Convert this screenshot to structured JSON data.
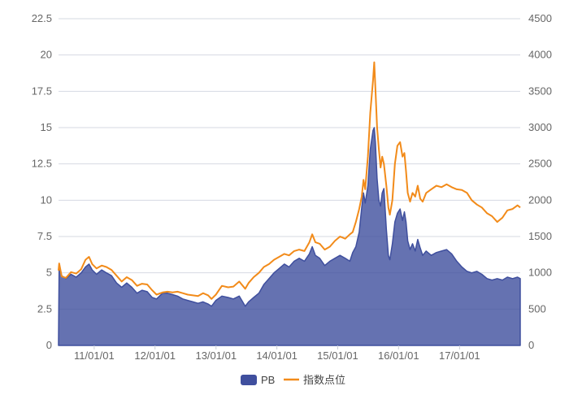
{
  "chart_data": {
    "type": "area",
    "x_ticks": [
      "11/01/01",
      "12/01/01",
      "13/01/01",
      "14/01/01",
      "15/01/01",
      "16/01/01",
      "17/01/01"
    ],
    "y_left_ticks": [
      "0",
      "2.5",
      "5",
      "7.5",
      "10",
      "12.5",
      "15",
      "17.5",
      "20",
      "22.5"
    ],
    "y_right_ticks": [
      "0",
      "500",
      "1000",
      "1500",
      "2000",
      "2500",
      "3000",
      "3500",
      "4000",
      "4500"
    ],
    "ylim_left": [
      0,
      22.5
    ],
    "ylim_right": [
      0,
      4500
    ],
    "x_range": [
      "2010-06-01",
      "2017-12-31"
    ],
    "grid": true,
    "legend_position": "bottom-center",
    "series": [
      {
        "name": "PB",
        "type": "area",
        "axis": "left",
        "color": "#3f4f9e",
        "points": [
          [
            "2010-06-01",
            0.2
          ],
          [
            "2010-06-05",
            5.6
          ],
          [
            "2010-06-20",
            4.8
          ],
          [
            "2010-07-15",
            4.6
          ],
          [
            "2010-08-15",
            4.9
          ],
          [
            "2010-09-15",
            4.7
          ],
          [
            "2010-10-15",
            5.0
          ],
          [
            "2010-11-10",
            5.4
          ],
          [
            "2010-12-01",
            5.6
          ],
          [
            "2010-12-20",
            5.2
          ],
          [
            "2011-01-15",
            4.9
          ],
          [
            "2011-02-15",
            5.2
          ],
          [
            "2011-03-15",
            5.0
          ],
          [
            "2011-04-15",
            4.8
          ],
          [
            "2011-05-15",
            4.3
          ],
          [
            "2011-06-15",
            4.0
          ],
          [
            "2011-07-15",
            4.3
          ],
          [
            "2011-08-15",
            4.0
          ],
          [
            "2011-09-15",
            3.6
          ],
          [
            "2011-10-15",
            3.8
          ],
          [
            "2011-11-15",
            3.7
          ],
          [
            "2011-12-15",
            3.3
          ],
          [
            "2012-01-10",
            3.2
          ],
          [
            "2012-02-15",
            3.6
          ],
          [
            "2012-03-15",
            3.6
          ],
          [
            "2012-04-15",
            3.5
          ],
          [
            "2012-05-15",
            3.4
          ],
          [
            "2012-06-15",
            3.2
          ],
          [
            "2012-07-15",
            3.1
          ],
          [
            "2012-08-15",
            3.0
          ],
          [
            "2012-09-15",
            2.9
          ],
          [
            "2012-10-15",
            3.0
          ],
          [
            "2012-11-15",
            2.85
          ],
          [
            "2012-12-05",
            2.7
          ],
          [
            "2012-12-31",
            3.1
          ],
          [
            "2013-02-05",
            3.4
          ],
          [
            "2013-03-15",
            3.3
          ],
          [
            "2013-04-15",
            3.2
          ],
          [
            "2013-05-20",
            3.4
          ],
          [
            "2013-06-25",
            2.7
          ],
          [
            "2013-07-15",
            3.0
          ],
          [
            "2013-08-15",
            3.3
          ],
          [
            "2013-09-15",
            3.6
          ],
          [
            "2013-10-15",
            4.2
          ],
          [
            "2013-11-15",
            4.6
          ],
          [
            "2013-12-15",
            5.0
          ],
          [
            "2014-01-15",
            5.3
          ],
          [
            "2014-02-15",
            5.6
          ],
          [
            "2014-03-15",
            5.4
          ],
          [
            "2014-04-15",
            5.8
          ],
          [
            "2014-05-15",
            6.0
          ],
          [
            "2014-06-15",
            5.8
          ],
          [
            "2014-07-15",
            6.3
          ],
          [
            "2014-08-01",
            6.8
          ],
          [
            "2014-08-20",
            6.2
          ],
          [
            "2014-09-15",
            6.0
          ],
          [
            "2014-10-15",
            5.5
          ],
          [
            "2014-11-15",
            5.8
          ],
          [
            "2014-12-15",
            6.0
          ],
          [
            "2015-01-15",
            6.2
          ],
          [
            "2015-02-15",
            6.0
          ],
          [
            "2015-03-15",
            5.8
          ],
          [
            "2015-04-01",
            6.4
          ],
          [
            "2015-04-20",
            6.8
          ],
          [
            "2015-05-10",
            7.8
          ],
          [
            "2015-05-25",
            9.5
          ],
          [
            "2015-06-05",
            10.5
          ],
          [
            "2015-06-15",
            9.8
          ],
          [
            "2015-07-01",
            11.0
          ],
          [
            "2015-07-15",
            13.5
          ],
          [
            "2015-08-01",
            14.8
          ],
          [
            "2015-08-08",
            15.0
          ],
          [
            "2015-08-15",
            14.0
          ],
          [
            "2015-08-25",
            11.5
          ],
          [
            "2015-09-05",
            10.0
          ],
          [
            "2015-09-15",
            9.6
          ],
          [
            "2015-09-25",
            10.5
          ],
          [
            "2015-10-05",
            10.8
          ],
          [
            "2015-10-20",
            8.0
          ],
          [
            "2015-11-01",
            6.2
          ],
          [
            "2015-11-10",
            5.9
          ],
          [
            "2015-11-25",
            7.0
          ],
          [
            "2015-12-10",
            8.5
          ],
          [
            "2015-12-25",
            9.1
          ],
          [
            "2016-01-10",
            9.4
          ],
          [
            "2016-01-25",
            8.6
          ],
          [
            "2016-02-05",
            9.2
          ],
          [
            "2016-02-15",
            8.5
          ],
          [
            "2016-02-25",
            7.2
          ],
          [
            "2016-03-10",
            6.6
          ],
          [
            "2016-03-25",
            7.0
          ],
          [
            "2016-04-10",
            6.5
          ],
          [
            "2016-04-25",
            7.3
          ],
          [
            "2016-05-10",
            6.7
          ],
          [
            "2016-05-25",
            6.2
          ],
          [
            "2016-06-15",
            6.5
          ],
          [
            "2016-07-15",
            6.2
          ],
          [
            "2016-08-15",
            6.4
          ],
          [
            "2016-09-15",
            6.5
          ],
          [
            "2016-10-15",
            6.6
          ],
          [
            "2016-11-15",
            6.3
          ],
          [
            "2016-12-15",
            5.8
          ],
          [
            "2017-01-15",
            5.4
          ],
          [
            "2017-02-15",
            5.1
          ],
          [
            "2017-03-15",
            5.0
          ],
          [
            "2017-04-15",
            5.1
          ],
          [
            "2017-05-15",
            4.9
          ],
          [
            "2017-06-15",
            4.6
          ],
          [
            "2017-07-15",
            4.5
          ],
          [
            "2017-08-15",
            4.6
          ],
          [
            "2017-09-15",
            4.5
          ],
          [
            "2017-10-15",
            4.7
          ],
          [
            "2017-11-15",
            4.6
          ],
          [
            "2017-12-15",
            4.7
          ],
          [
            "2017-12-31",
            4.6
          ]
        ]
      },
      {
        "name": "指数点位",
        "type": "line",
        "axis": "right",
        "color": "#f28b1a",
        "points": [
          [
            "2010-06-01",
            1030
          ],
          [
            "2010-06-05",
            1130
          ],
          [
            "2010-06-20",
            950
          ],
          [
            "2010-07-15",
            930
          ],
          [
            "2010-08-15",
            1010
          ],
          [
            "2010-09-15",
            990
          ],
          [
            "2010-10-15",
            1050
          ],
          [
            "2010-11-10",
            1180
          ],
          [
            "2010-12-01",
            1220
          ],
          [
            "2010-12-20",
            1120
          ],
          [
            "2011-01-15",
            1060
          ],
          [
            "2011-02-15",
            1100
          ],
          [
            "2011-03-15",
            1080
          ],
          [
            "2011-04-15",
            1040
          ],
          [
            "2011-05-15",
            960
          ],
          [
            "2011-06-15",
            880
          ],
          [
            "2011-07-15",
            940
          ],
          [
            "2011-08-15",
            900
          ],
          [
            "2011-09-15",
            820
          ],
          [
            "2011-10-15",
            850
          ],
          [
            "2011-11-15",
            840
          ],
          [
            "2011-12-15",
            760
          ],
          [
            "2012-01-10",
            700
          ],
          [
            "2012-02-15",
            730
          ],
          [
            "2012-03-15",
            740
          ],
          [
            "2012-04-15",
            730
          ],
          [
            "2012-05-15",
            740
          ],
          [
            "2012-06-15",
            720
          ],
          [
            "2012-07-15",
            700
          ],
          [
            "2012-08-15",
            690
          ],
          [
            "2012-09-15",
            680
          ],
          [
            "2012-10-15",
            720
          ],
          [
            "2012-11-15",
            690
          ],
          [
            "2012-12-05",
            640
          ],
          [
            "2012-12-31",
            700
          ],
          [
            "2013-02-05",
            820
          ],
          [
            "2013-03-15",
            800
          ],
          [
            "2013-04-15",
            810
          ],
          [
            "2013-05-20",
            880
          ],
          [
            "2013-06-25",
            780
          ],
          [
            "2013-07-15",
            860
          ],
          [
            "2013-08-15",
            940
          ],
          [
            "2013-09-15",
            1000
          ],
          [
            "2013-10-15",
            1080
          ],
          [
            "2013-11-15",
            1120
          ],
          [
            "2013-12-15",
            1180
          ],
          [
            "2014-01-15",
            1220
          ],
          [
            "2014-02-15",
            1260
          ],
          [
            "2014-03-15",
            1240
          ],
          [
            "2014-04-15",
            1300
          ],
          [
            "2014-05-15",
            1320
          ],
          [
            "2014-06-15",
            1300
          ],
          [
            "2014-07-15",
            1420
          ],
          [
            "2014-08-01",
            1530
          ],
          [
            "2014-08-20",
            1420
          ],
          [
            "2014-09-15",
            1400
          ],
          [
            "2014-10-15",
            1320
          ],
          [
            "2014-11-15",
            1360
          ],
          [
            "2014-12-15",
            1440
          ],
          [
            "2015-01-15",
            1500
          ],
          [
            "2015-02-15",
            1470
          ],
          [
            "2015-03-15",
            1530
          ],
          [
            "2015-04-01",
            1560
          ],
          [
            "2015-04-20",
            1700
          ],
          [
            "2015-05-10",
            1880
          ],
          [
            "2015-05-25",
            2050
          ],
          [
            "2015-06-05",
            2280
          ],
          [
            "2015-06-15",
            2150
          ],
          [
            "2015-07-01",
            2600
          ],
          [
            "2015-07-15",
            3200
          ],
          [
            "2015-08-01",
            3650
          ],
          [
            "2015-08-08",
            3900
          ],
          [
            "2015-08-15",
            3550
          ],
          [
            "2015-08-25",
            3000
          ],
          [
            "2015-09-05",
            2700
          ],
          [
            "2015-09-15",
            2450
          ],
          [
            "2015-09-25",
            2600
          ],
          [
            "2015-10-05",
            2500
          ],
          [
            "2015-10-20",
            2200
          ],
          [
            "2015-11-01",
            1900
          ],
          [
            "2015-11-10",
            1800
          ],
          [
            "2015-11-25",
            2000
          ],
          [
            "2015-12-10",
            2500
          ],
          [
            "2015-12-25",
            2750
          ],
          [
            "2016-01-10",
            2800
          ],
          [
            "2016-01-25",
            2600
          ],
          [
            "2016-02-05",
            2650
          ],
          [
            "2016-02-15",
            2400
          ],
          [
            "2016-02-25",
            2100
          ],
          [
            "2016-03-10",
            1980
          ],
          [
            "2016-03-25",
            2100
          ],
          [
            "2016-04-10",
            2050
          ],
          [
            "2016-04-25",
            2200
          ],
          [
            "2016-05-10",
            2020
          ],
          [
            "2016-05-25",
            1980
          ],
          [
            "2016-06-15",
            2100
          ],
          [
            "2016-07-15",
            2150
          ],
          [
            "2016-08-15",
            2200
          ],
          [
            "2016-09-15",
            2180
          ],
          [
            "2016-10-15",
            2220
          ],
          [
            "2016-11-15",
            2180
          ],
          [
            "2016-12-15",
            2150
          ],
          [
            "2017-01-15",
            2140
          ],
          [
            "2017-02-15",
            2100
          ],
          [
            "2017-03-15",
            2000
          ],
          [
            "2017-04-15",
            1940
          ],
          [
            "2017-05-15",
            1900
          ],
          [
            "2017-06-15",
            1820
          ],
          [
            "2017-07-15",
            1780
          ],
          [
            "2017-08-15",
            1700
          ],
          [
            "2017-09-15",
            1760
          ],
          [
            "2017-10-15",
            1860
          ],
          [
            "2017-11-15",
            1880
          ],
          [
            "2017-12-15",
            1930
          ],
          [
            "2017-12-31",
            1900
          ]
        ]
      }
    ]
  }
}
